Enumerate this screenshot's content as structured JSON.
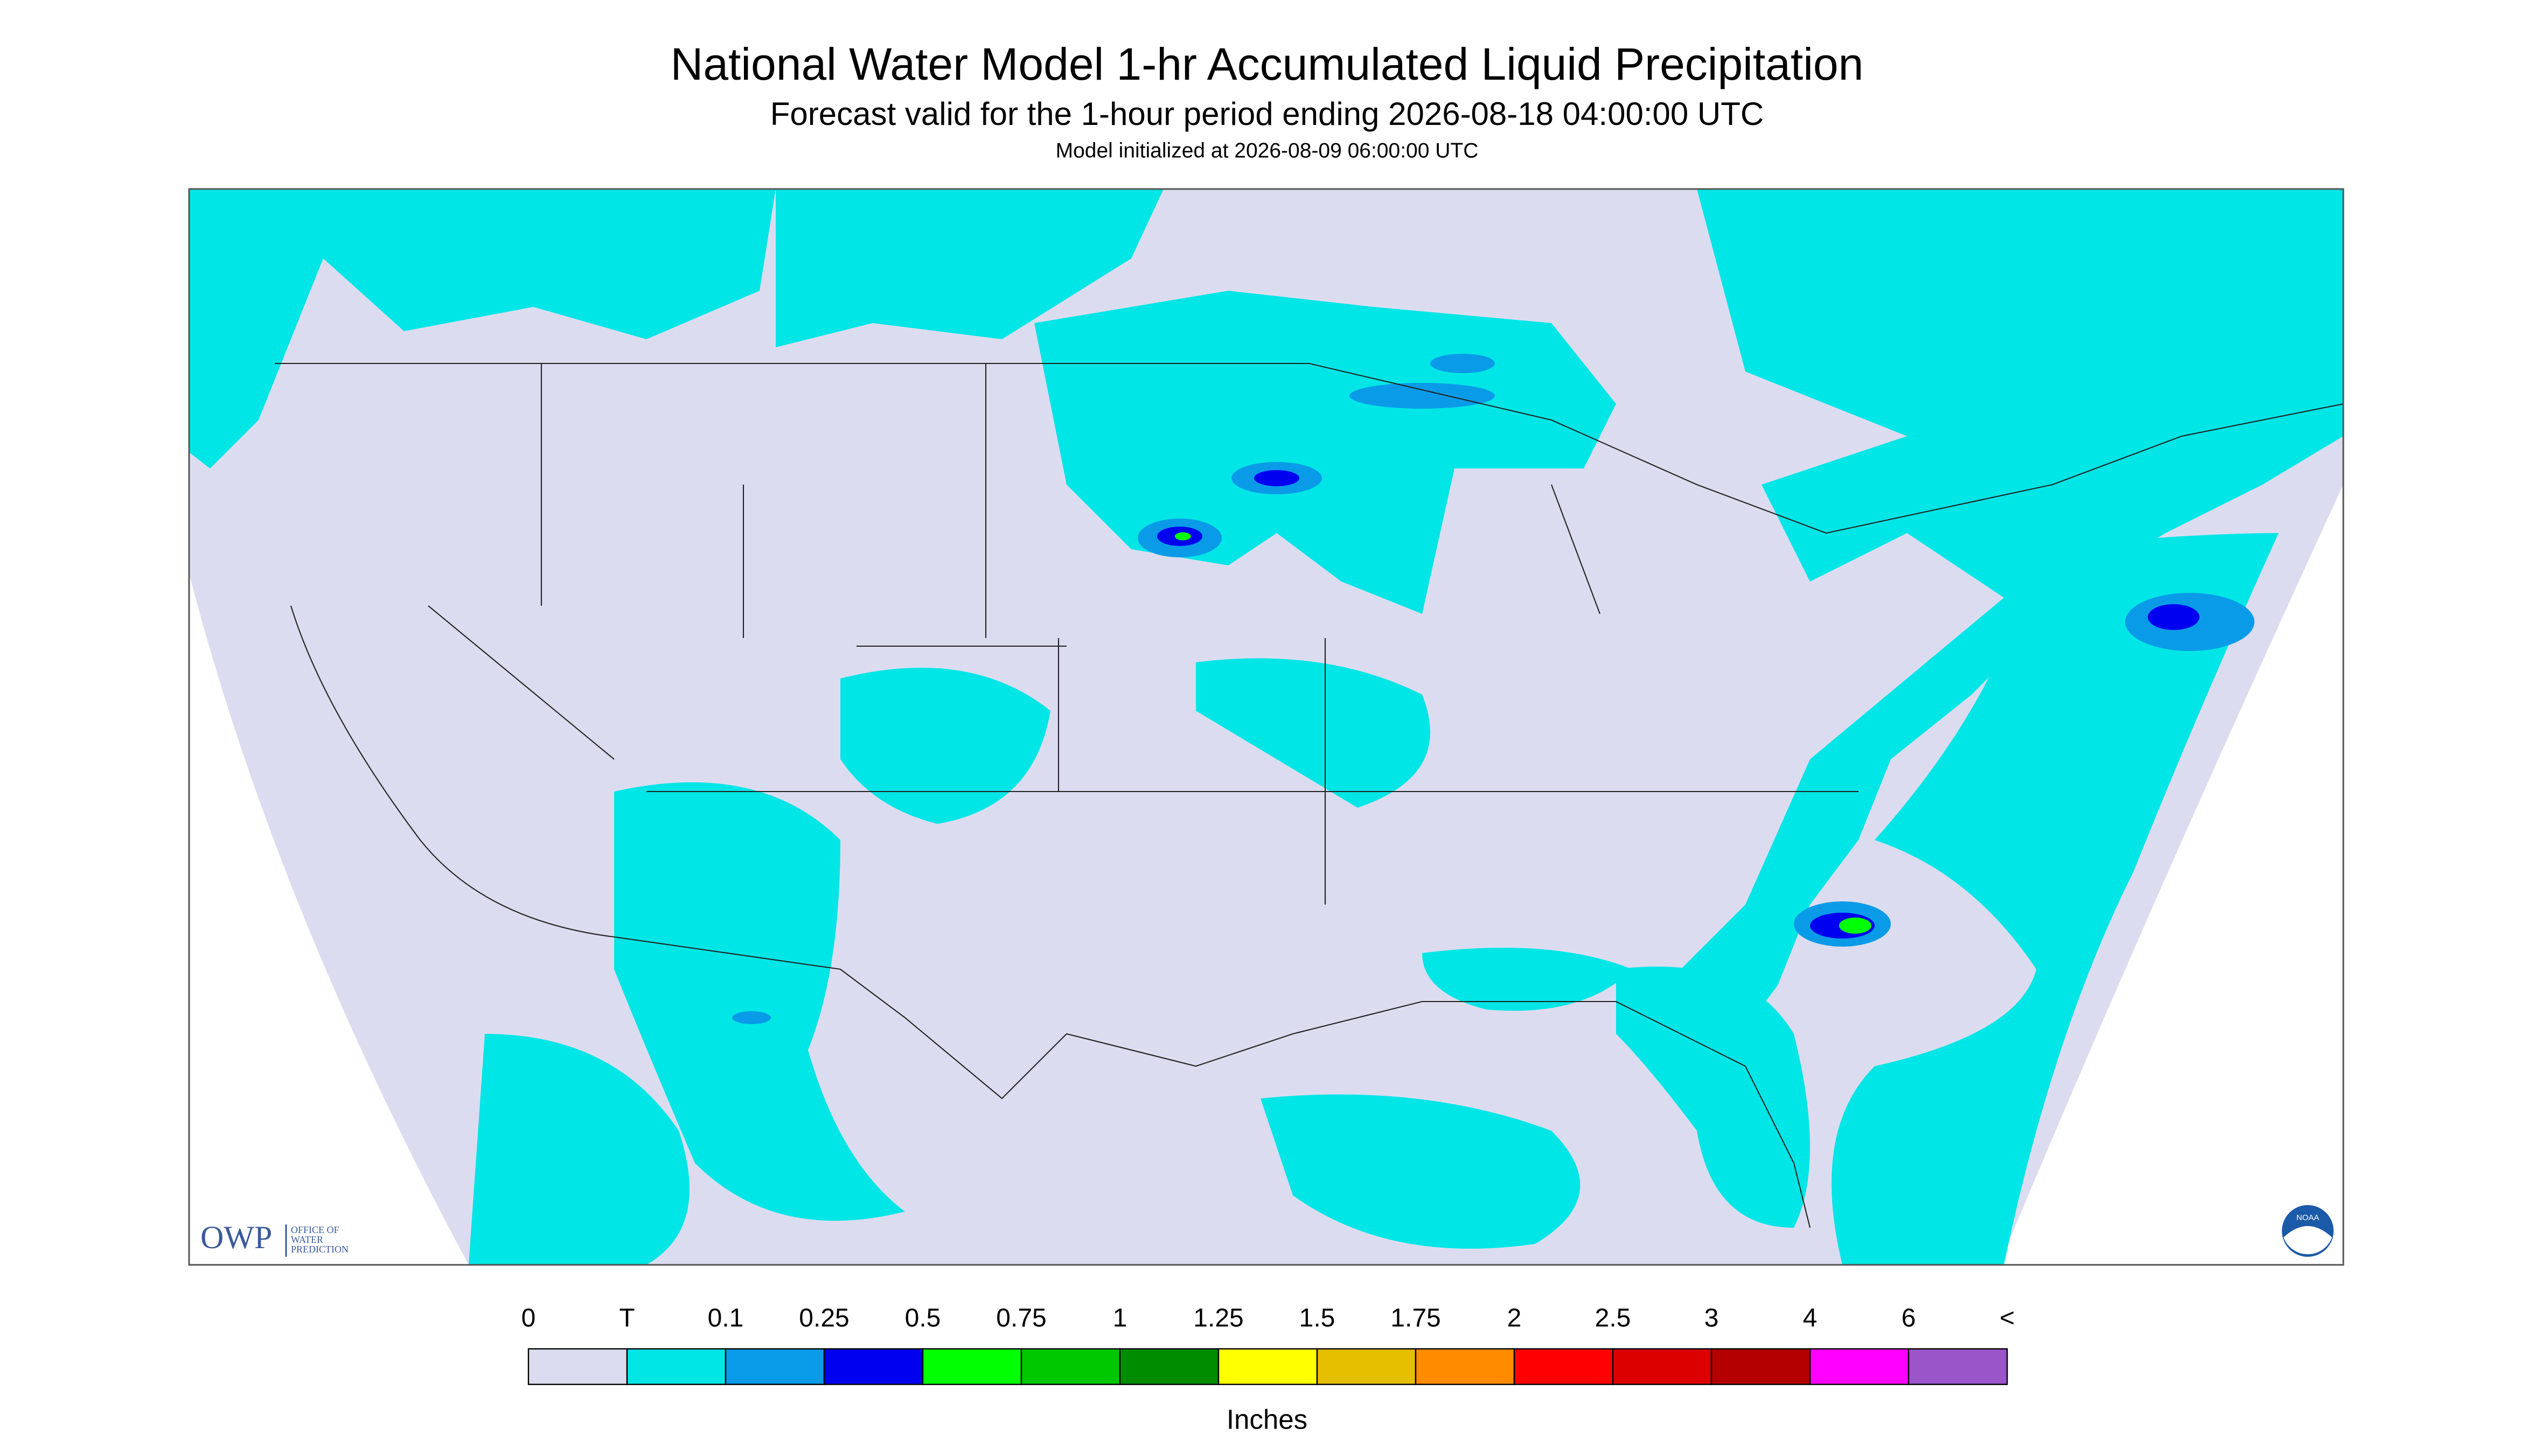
{
  "header": {
    "title": "National Water Model 1-hr Accumulated Liquid Precipitation",
    "subtitle": "Forecast valid for the 1-hour period ending 2026-08-18 04:00:00 UTC",
    "initialized": "Model initialized at 2026-08-09 06:00:00 UTC"
  },
  "legend": {
    "labels": [
      "0",
      "T",
      "0.1",
      "0.25",
      "0.5",
      "0.75",
      "1",
      "1.25",
      "1.5",
      "1.75",
      "2",
      "2.5",
      "3",
      "4",
      "6",
      "<"
    ],
    "colors": [
      "#dcdcf0",
      "#00e6e6",
      "#0a9be8",
      "#0000f0",
      "#00ff00",
      "#00c800",
      "#008c00",
      "#ffff00",
      "#e6be00",
      "#ff8c00",
      "#ff0000",
      "#dc0000",
      "#b40000",
      "#ff00ff",
      "#9a55c8"
    ],
    "unit": "Inches"
  },
  "logos": {
    "owp": "OWP",
    "owp_name": [
      "OFFICE OF",
      "WATER",
      "PREDICTION"
    ],
    "noaa": "NOAA"
  }
}
